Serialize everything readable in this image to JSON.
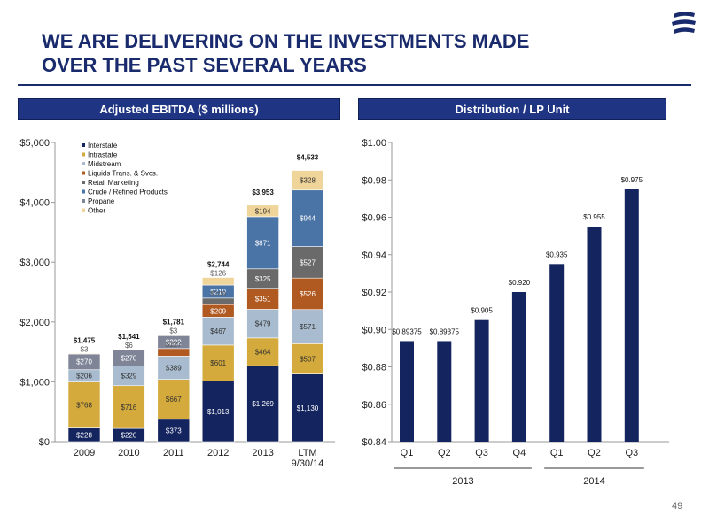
{
  "slide": {
    "title_line1": "WE ARE DELIVERING ON THE INVESTMENTS MADE",
    "title_line2": "OVER  THE PAST SEVERAL YEARS",
    "page_number": "49",
    "logo_icon": "company-logo-icon"
  },
  "colors": {
    "navy": "#1a2b6d",
    "header_fill": "#1f3584"
  },
  "chart_data": [
    {
      "type": "bar",
      "stacked": true,
      "title": "Adjusted EBITDA ($ millions)",
      "categories": [
        "2009",
        "2010",
        "2011",
        "2012",
        "2013",
        "LTM\n9/30/14"
      ],
      "ylim": [
        0,
        5000
      ],
      "yticks": [
        0,
        1000,
        2000,
        3000,
        4000,
        5000
      ],
      "ytick_labels": [
        "$0",
        "$1,000",
        "$2,000",
        "$3,000",
        "$4,000",
        "$5,000"
      ],
      "grid": false,
      "legend_position": "top-left",
      "series": [
        {
          "name": "Interstate",
          "color": "#14245e",
          "text_color": "#ffffff",
          "values": [
            228,
            220,
            373,
            1013,
            1269,
            1130
          ],
          "labels": [
            "$228",
            "$220",
            "$373",
            "$1,013",
            "$1,269",
            "$1,130"
          ]
        },
        {
          "name": "Intrastate",
          "color": "#d4aa3c",
          "text_color": "#333333",
          "values": [
            768,
            716,
            667,
            601,
            464,
            507
          ],
          "labels": [
            "$768",
            "$716",
            "$667",
            "$601",
            "$464",
            "$507"
          ]
        },
        {
          "name": "Midstream",
          "color": "#a9bccf",
          "text_color": "#333333",
          "values": [
            206,
            329,
            389,
            467,
            479,
            571
          ],
          "labels": [
            "$206",
            "$329",
            "$389",
            "$467",
            "$479",
            "$571"
          ]
        },
        {
          "name": "Liquids Trans. & Svcs.",
          "color": "#b05a22",
          "text_color": "#ffffff",
          "values": [
            0,
            0,
            127,
            209,
            351,
            526
          ],
          "labels": [
            "",
            "",
            "$127",
            "$209",
            "$351",
            "$526"
          ]
        },
        {
          "name": "Retail Marketing",
          "color": "#6a6a6a",
          "text_color": "#ffffff",
          "values": [
            0,
            0,
            0,
            109,
            325,
            527
          ],
          "labels": [
            "",
            "",
            "",
            "$109",
            "$325",
            "$527"
          ]
        },
        {
          "name": "Crude / Refined Products",
          "color": "#4a73a6",
          "text_color": "#ffffff",
          "values": [
            0,
            0,
            0,
            219,
            871,
            944
          ],
          "labels": [
            "",
            "",
            "",
            "$219",
            "$871",
            "$944"
          ]
        },
        {
          "name": "Propane",
          "color": "#7f8597",
          "text_color": "#ffffff",
          "values": [
            270,
            270,
            222,
            0,
            0,
            0
          ],
          "labels": [
            "$270",
            "$270",
            "$222",
            "",
            "",
            ""
          ]
        },
        {
          "name": "Other",
          "color": "#f0d59a",
          "text_color": "#333333",
          "values": [
            3,
            6,
            3,
            126,
            194,
            328
          ],
          "labels": [
            "$3",
            "$6",
            "$3",
            "$126",
            "$194",
            "$328"
          ]
        }
      ],
      "totals": [
        "$1,475",
        "$1,541",
        "$1,781",
        "$2,744",
        "$3,953",
        "$4,533"
      ]
    },
    {
      "type": "bar",
      "title": "Distribution / LP Unit",
      "categories": [
        "Q1",
        "Q2",
        "Q3",
        "Q4",
        "Q1",
        "Q2",
        "Q3"
      ],
      "groups": [
        {
          "label": "2013",
          "from": 0,
          "to": 3
        },
        {
          "label": "2014",
          "from": 4,
          "to": 6
        }
      ],
      "values": [
        0.89375,
        0.89375,
        0.905,
        0.92,
        0.935,
        0.955,
        0.975
      ],
      "value_labels": [
        "$0.89375",
        "$0.89375",
        "$0.905",
        "$0.920",
        "$0.935",
        "$0.955",
        "$0.975"
      ],
      "ylim": [
        0.84,
        1.0
      ],
      "yticks": [
        0.84,
        0.86,
        0.88,
        0.9,
        0.92,
        0.94,
        0.96,
        0.98,
        1.0
      ],
      "ytick_labels": [
        "$0.84",
        "$0.86",
        "$0.88",
        "$0.90",
        "$0.92",
        "$0.94",
        "$0.96",
        "$0.98",
        "$1.00"
      ],
      "grid": false,
      "color": "#14245e"
    }
  ]
}
